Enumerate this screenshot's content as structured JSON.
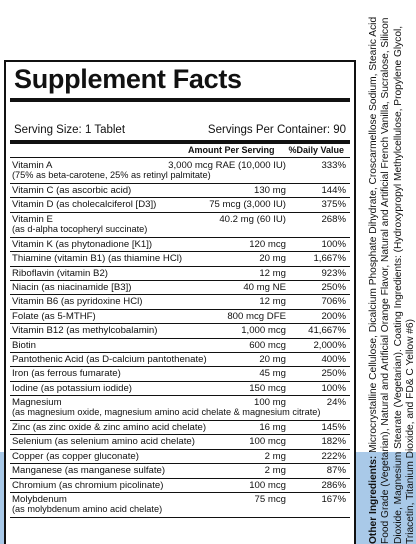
{
  "title": "Supplement Facts",
  "serving_size": "Serving Size: 1 Tablet",
  "servings_per_container": "Servings Per Container: 90",
  "headers": {
    "amount": "Amount Per Serving",
    "dv": "%Daily Value"
  },
  "nutrients": [
    {
      "name": "Vitamin A",
      "amount": "3,000 mcg RAE (10,000 IU)",
      "dv": "333%",
      "sub": "(75% as beta-carotene, 25% as retinyl palmitate)"
    },
    {
      "name": "Vitamin C (as ascorbic acid)",
      "amount": "130 mg",
      "dv": "144%"
    },
    {
      "name": "Vitamin D (as cholecalciferol [D3])",
      "amount": "75 mcg (3,000 IU)",
      "dv": "375%"
    },
    {
      "name": "Vitamin E",
      "amount": "40.2 mg (60 IU)",
      "dv": "268%",
      "sub": "(as d-alpha tocopheryl succinate)"
    },
    {
      "name": "Vitamin K (as phytonadione [K1])",
      "amount": "120 mcg",
      "dv": "100%"
    },
    {
      "name": "Thiamine (vitamin B1) (as thiamine HCl)",
      "amount": "20 mg",
      "dv": "1,667%"
    },
    {
      "name": "Riboflavin (vitamin B2)",
      "amount": "12 mg",
      "dv": "923%"
    },
    {
      "name": "Niacin (as niacinamide [B3])",
      "amount": "40 mg NE",
      "dv": "250%"
    },
    {
      "name": "Vitamin B6 (as pyridoxine HCl)",
      "amount": "12 mg",
      "dv": "706%"
    },
    {
      "name": "Folate (as 5-MTHF)",
      "amount": "800 mcg DFE",
      "dv": "200%"
    },
    {
      "name": "Vitamin B12 (as methylcobalamin)",
      "amount": "1,000 mcg",
      "dv": "41,667%"
    },
    {
      "name": "Biotin",
      "amount": "600 mcg",
      "dv": "2,000%"
    },
    {
      "name": "Pantothenic Acid (as D-calcium pantothenate)",
      "amount": "20 mg",
      "dv": "400%"
    },
    {
      "name": "Iron (as ferrous fumarate)",
      "amount": "45 mg",
      "dv": "250%"
    },
    {
      "name": "Iodine (as potassium iodide)",
      "amount": "150 mcg",
      "dv": "100%"
    },
    {
      "name": "Magnesium",
      "amount": "100 mg",
      "dv": "24%",
      "sub": "(as magnesium oxide, magnesium amino acid chelate & magnesium citrate)"
    },
    {
      "name": "Zinc (as zinc oxide & zinc amino acid chelate)",
      "amount": "16 mg",
      "dv": "145%"
    },
    {
      "name": "Selenium (as selenium amino acid chelate)",
      "amount": "100 mcg",
      "dv": "182%"
    },
    {
      "name": "Copper (as copper gluconate)",
      "amount": "2 mg",
      "dv": "222%"
    },
    {
      "name": "Manganese (as manganese sulfate)",
      "amount": "2 mg",
      "dv": "87%"
    },
    {
      "name": "Chromium (as chromium picolinate)",
      "amount": "100 mcg",
      "dv": "286%"
    },
    {
      "name": "Molybdenum",
      "amount": "75 mcg",
      "dv": "167%",
      "sub": "(as molybdenum amino acid chelate)"
    }
  ],
  "other_ingredients": {
    "label": "Other Ingredients:",
    "text": " Microcrystalline Cellulose, Dicalcium Phosphate Dihydrate, Croscarmellose Sodium, Stearic Acid Food Grade (Vegetarian), Natural and Artificial Orange Flavor, Natural and Artificial French Vanilla, Sucralose, Silicon Dioxide, Magnesium Stearate (Vegetarian). Coating Ingredients: (Hydroxypropyl Methylcellulose, Propylene Glycol, Triacetin, Titanium Dioxide, and FD& C Yellow #6)"
  },
  "colors": {
    "band": "#a9c9e8",
    "ink": "#111111"
  }
}
